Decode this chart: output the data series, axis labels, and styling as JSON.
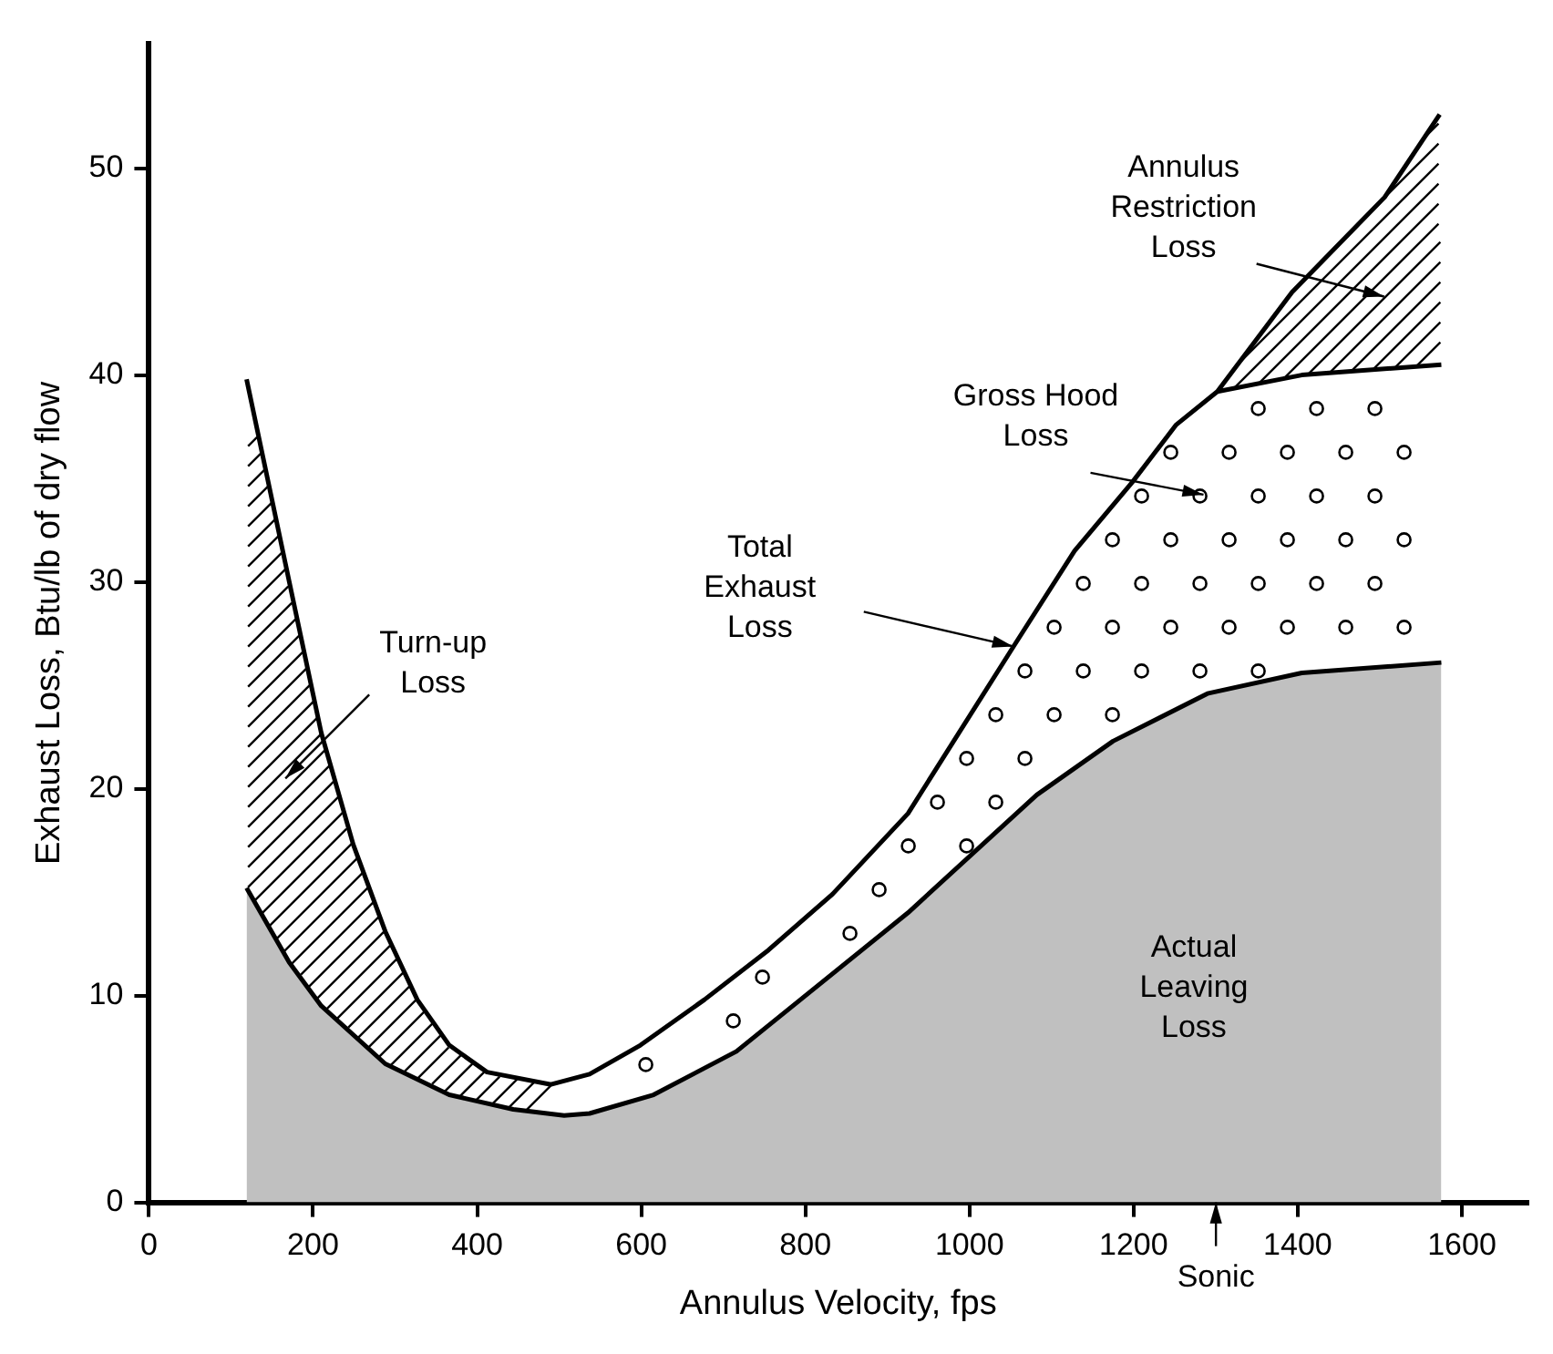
{
  "chart_data": {
    "type": "line",
    "xlabel": "Annulus Velocity, fps",
    "ylabel": "Exhaust Loss, Btu/lb of dry flow",
    "xlim": [
      0,
      1680
    ],
    "xticks": [
      0,
      200,
      400,
      600,
      800,
      1000,
      1200,
      1400,
      1600
    ],
    "ylim": [
      0,
      56
    ],
    "yticks": [
      0,
      10,
      20,
      30,
      40,
      50
    ],
    "grid": false,
    "legend": false,
    "marker": "none",
    "line_style": "solid",
    "series": [
      {
        "type": "area",
        "color": "#c0c0c0",
        "x": [
          119,
          171,
          210,
          288,
          366,
          444,
          506,
          537,
          615,
          716,
          794,
          925,
          1082,
          1175,
          1290,
          1405,
          1575
        ],
        "values": [
          15.2,
          11.6,
          9.5,
          6.7,
          5.2,
          4.5,
          4.2,
          4.3,
          5.2,
          7.3,
          9.8,
          14.0,
          19.7,
          22.3,
          24.6,
          25.6,
          26.1
        ]
      },
      {
        "type": "line",
        "color": "#000000",
        "x": [
          119,
          171,
          210,
          249,
          288,
          327,
          366,
          412,
          490,
          537,
          599,
          677,
          755,
          833,
          925,
          1054,
          1128,
          1198,
          1252,
          1302,
          1393,
          1506,
          1573
        ],
        "values": [
          39.8,
          30,
          22.7,
          17.3,
          13.1,
          9.8,
          7.6,
          6.3,
          5.7,
          6.2,
          7.6,
          9.8,
          12.2,
          14.9,
          18.8,
          26.9,
          31.5,
          34.8,
          37.6,
          39.2,
          44.0,
          48.6,
          52.6
        ]
      },
      {
        "type": "line",
        "color": "#000000",
        "x": [
          1302,
          1405,
          1575
        ],
        "values": [
          39.2,
          40.0,
          40.5
        ]
      }
    ],
    "annotations": [
      "Annulus\nRestriction\nLoss",
      "Gross Hood\nLoss",
      "Total\nExhaust\nLoss",
      "Turn-up\nLoss",
      "Actual\nLeaving\nLoss",
      "Sonic"
    ]
  }
}
